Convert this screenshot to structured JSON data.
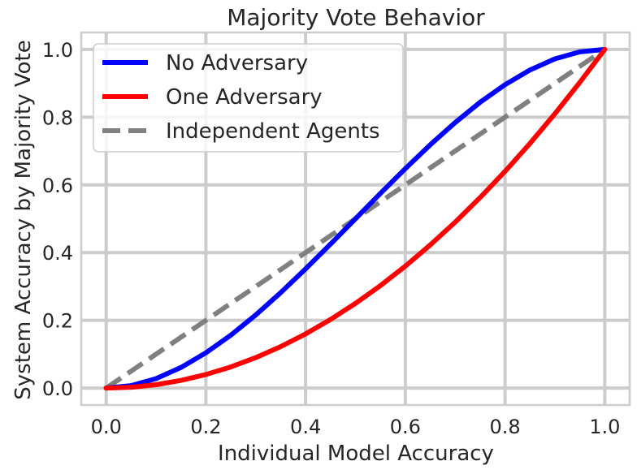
{
  "chart_data": {
    "type": "line",
    "title": "Majority Vote Behavior",
    "xlabel": "Individual Model Accuracy",
    "ylabel": "System Accuracy by Majority Vote",
    "xlim": [
      -0.05,
      1.05
    ],
    "ylim": [
      -0.05,
      1.05
    ],
    "xticks": [
      0.0,
      0.2,
      0.4,
      0.6,
      0.8,
      1.0
    ],
    "xtick_labels": [
      "0.0",
      "0.2",
      "0.4",
      "0.6",
      "0.8",
      "1.0"
    ],
    "yticks": [
      0.0,
      0.2,
      0.4,
      0.6,
      0.8,
      1.0
    ],
    "ytick_labels": [
      "0.0",
      "0.2",
      "0.4",
      "0.6",
      "0.8",
      "1.0"
    ],
    "grid": true,
    "legend_position": "top-left",
    "x": [
      0.0,
      0.05,
      0.1,
      0.15,
      0.2,
      0.25,
      0.3,
      0.35,
      0.4,
      0.45,
      0.5,
      0.55,
      0.6,
      0.65,
      0.7,
      0.75,
      0.8,
      0.85,
      0.9,
      0.95,
      1.0
    ],
    "series": [
      {
        "name": "No Adversary",
        "color": "#0000ff",
        "style": "solid",
        "values": [
          0.0,
          0.0073,
          0.028,
          0.0608,
          0.104,
          0.1563,
          0.216,
          0.2818,
          0.352,
          0.4253,
          0.5,
          0.5748,
          0.648,
          0.7183,
          0.784,
          0.8438,
          0.896,
          0.9393,
          0.972,
          0.9928,
          1.0
        ]
      },
      {
        "name": "One Adversary",
        "color": "#ff0000",
        "style": "solid",
        "values": [
          0.0,
          0.0025,
          0.01,
          0.0225,
          0.04,
          0.0625,
          0.09,
          0.1225,
          0.16,
          0.2025,
          0.25,
          0.3025,
          0.36,
          0.4225,
          0.49,
          0.5625,
          0.64,
          0.7225,
          0.81,
          0.9025,
          1.0
        ]
      },
      {
        "name": "Independent Agents",
        "color": "#808080",
        "style": "dashed",
        "values": [
          0.0,
          0.05,
          0.1,
          0.15,
          0.2,
          0.25,
          0.3,
          0.35,
          0.4,
          0.45,
          0.5,
          0.55,
          0.6,
          0.65,
          0.7,
          0.75,
          0.8,
          0.85,
          0.9,
          0.95,
          1.0
        ]
      }
    ]
  }
}
